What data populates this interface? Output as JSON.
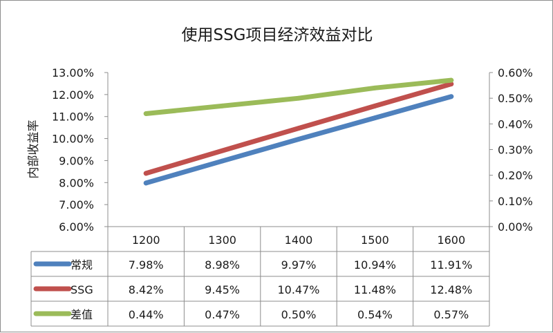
{
  "chart_data": {
    "type": "line",
    "title": "使用SSG项目经济效益对比",
    "ylabel": "内部收益率",
    "categories": [
      "1200",
      "1300",
      "1400",
      "1500",
      "1600"
    ],
    "y_left": {
      "lim": [
        6,
        13
      ],
      "ticks": [
        "6.00%",
        "7.00%",
        "8.00%",
        "9.00%",
        "10.00%",
        "11.00%",
        "12.00%",
        "13.00%"
      ]
    },
    "y_right": {
      "lim": [
        0,
        0.6
      ],
      "ticks": [
        "0.00%",
        "0.10%",
        "0.20%",
        "0.30%",
        "0.40%",
        "0.50%",
        "0.60%"
      ]
    },
    "series": [
      {
        "name": "常规",
        "axis": "left",
        "color": "#4F81BD",
        "values": [
          7.98,
          8.98,
          9.97,
          10.94,
          11.91
        ],
        "labels": [
          "7.98%",
          "8.98%",
          "9.97%",
          "10.94%",
          "11.91%"
        ]
      },
      {
        "name": "SSG",
        "axis": "left",
        "color": "#C0504D",
        "values": [
          8.42,
          9.45,
          10.47,
          11.48,
          12.48
        ],
        "labels": [
          "8.42%",
          "9.45%",
          "10.47%",
          "11.48%",
          "12.48%"
        ]
      },
      {
        "name": "差值",
        "axis": "right",
        "color": "#9BBB59",
        "values": [
          0.44,
          0.47,
          0.5,
          0.54,
          0.57
        ],
        "labels": [
          "0.44%",
          "0.47%",
          "0.50%",
          "0.54%",
          "0.57%"
        ]
      }
    ],
    "legend": "data-table",
    "grid": false
  }
}
